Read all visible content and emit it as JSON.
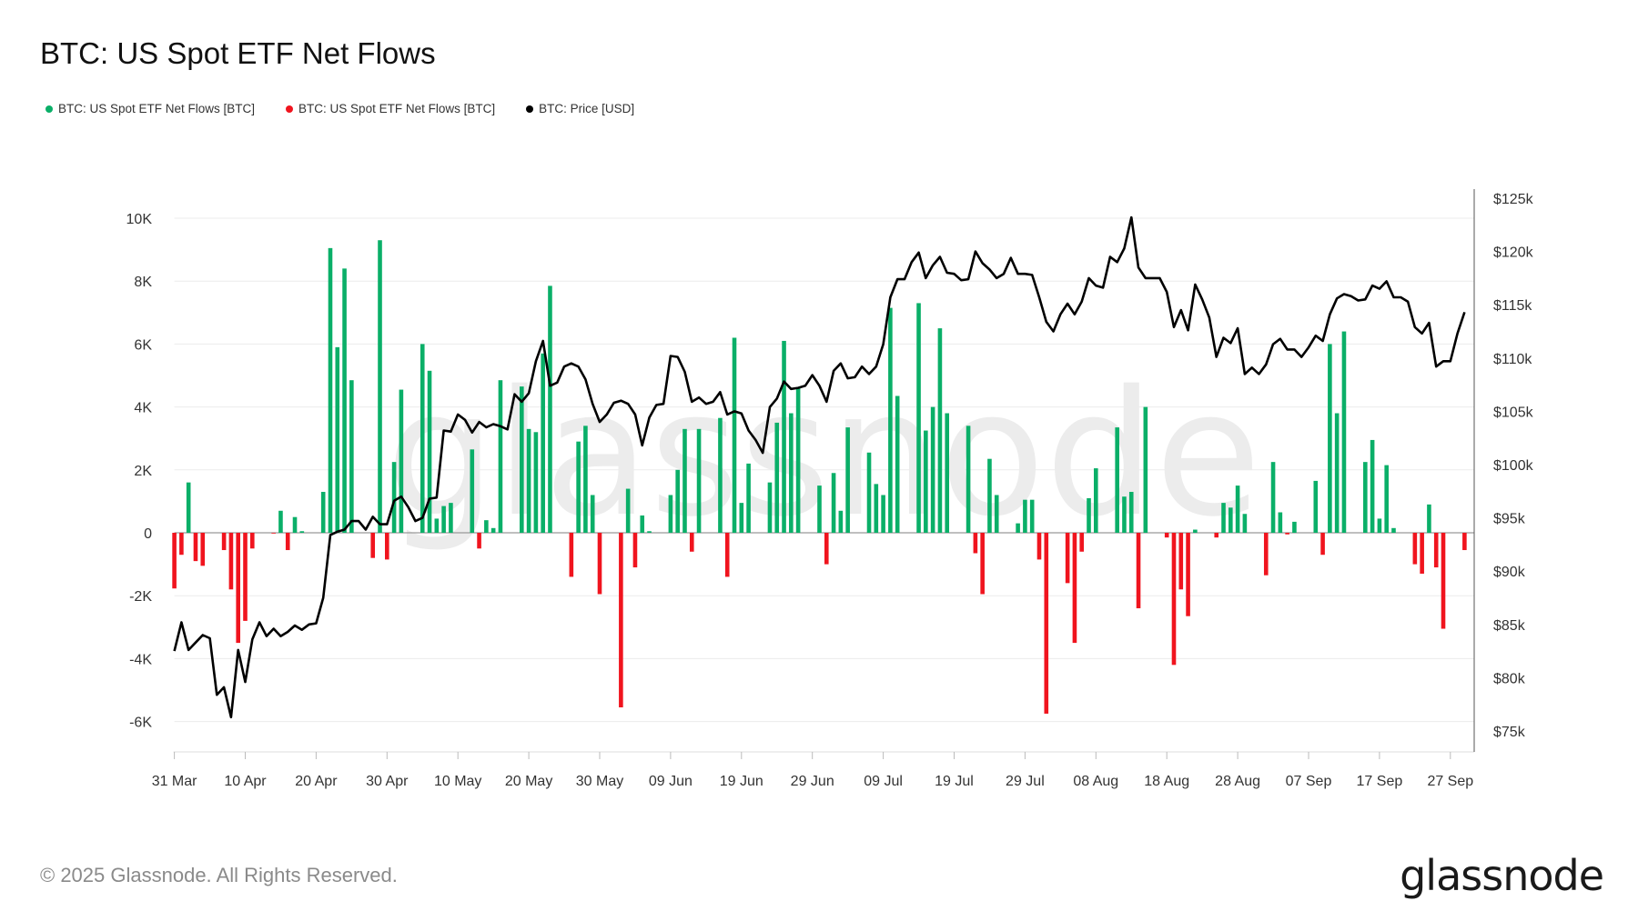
{
  "header": {
    "title": "BTC: US Spot ETF Net Flows"
  },
  "footer": {
    "copyright": "© 2025 Glassnode. All Rights Reserved.",
    "logo": "glassnode",
    "watermark": "glassnode"
  },
  "chart_data": {
    "type": "bar",
    "title": "BTC: US Spot ETF Net Flows",
    "legend": [
      {
        "name": "BTC: US Spot ETF Net Flows [BTC]",
        "color": "#0aaf68"
      },
      {
        "name": "BTC: US Spot ETF Net Flows [BTC]",
        "color": "#f0141e"
      },
      {
        "name": "BTC: Price [USD]",
        "color": "#000000"
      }
    ],
    "legend_position": "top-left",
    "grid": true,
    "x_start": "2025-03-31",
    "x_end": "2025-09-29",
    "x_ticks": [
      "31 Mar",
      "10 Apr",
      "20 Apr",
      "30 Apr",
      "10 May",
      "20 May",
      "30 May",
      "09 Jun",
      "19 Jun",
      "29 Jun",
      "09 Jul",
      "19 Jul",
      "29 Jul",
      "08 Aug",
      "18 Aug",
      "28 Aug",
      "07 Sep",
      "17 Sep",
      "27 Sep"
    ],
    "y_left": {
      "ticks": [
        "-6K",
        "-4K",
        "-2K",
        "0",
        "2K",
        "4K",
        "6K",
        "8K",
        "10K"
      ],
      "tick_values": [
        -6000,
        -4000,
        -2000,
        0,
        2000,
        4000,
        6000,
        8000,
        10000
      ],
      "range": [
        -7000,
        10500
      ]
    },
    "y_right": {
      "ticks": [
        "$75k",
        "$80k",
        "$85k",
        "$90k",
        "$95k",
        "$100k",
        "$105k",
        "$110k",
        "$115k",
        "$120k",
        "$125k"
      ],
      "tick_values": [
        75000,
        80000,
        85000,
        90000,
        95000,
        100000,
        105000,
        110000,
        115000,
        120000,
        125000
      ],
      "range": [
        74000,
        126000
      ]
    },
    "flows": [
      [
        "2025-03-31",
        -1770
      ],
      [
        "2025-04-01",
        -700
      ],
      [
        "2025-04-02",
        1600
      ],
      [
        "2025-04-03",
        -900
      ],
      [
        "2025-04-04",
        -1050
      ],
      [
        "2025-04-07",
        -550
      ],
      [
        "2025-04-08",
        -1800
      ],
      [
        "2025-04-09",
        -3500
      ],
      [
        "2025-04-10",
        -2800
      ],
      [
        "2025-04-11",
        -500
      ],
      [
        "2025-04-14",
        -20
      ],
      [
        "2025-04-15",
        700
      ],
      [
        "2025-04-16",
        -550
      ],
      [
        "2025-04-17",
        500
      ],
      [
        "2025-04-18",
        50
      ],
      [
        "2025-04-21",
        1300
      ],
      [
        "2025-04-22",
        9050
      ],
      [
        "2025-04-23",
        5900
      ],
      [
        "2025-04-24",
        8400
      ],
      [
        "2025-04-25",
        4850
      ],
      [
        "2025-04-28",
        -800
      ],
      [
        "2025-04-29",
        9300
      ],
      [
        "2025-04-30",
        -850
      ],
      [
        "2025-05-01",
        2250
      ],
      [
        "2025-05-02",
        4550
      ],
      [
        "2025-05-05",
        6000
      ],
      [
        "2025-05-06",
        5150
      ],
      [
        "2025-05-07",
        450
      ],
      [
        "2025-05-08",
        850
      ],
      [
        "2025-05-09",
        950
      ],
      [
        "2025-05-12",
        2650
      ],
      [
        "2025-05-13",
        -500
      ],
      [
        "2025-05-14",
        400
      ],
      [
        "2025-05-15",
        150
      ],
      [
        "2025-05-16",
        4850
      ],
      [
        "2025-05-19",
        4650
      ],
      [
        "2025-05-20",
        3300
      ],
      [
        "2025-05-21",
        3200
      ],
      [
        "2025-05-22",
        5700
      ],
      [
        "2025-05-23",
        7850
      ],
      [
        "2025-05-26",
        -1400
      ],
      [
        "2025-05-27",
        2900
      ],
      [
        "2025-05-28",
        3400
      ],
      [
        "2025-05-29",
        1200
      ],
      [
        "2025-05-30",
        -1950
      ],
      [
        "2025-06-02",
        -5550
      ],
      [
        "2025-06-03",
        1400
      ],
      [
        "2025-06-04",
        -1100
      ],
      [
        "2025-06-05",
        550
      ],
      [
        "2025-06-06",
        50
      ],
      [
        "2025-06-09",
        1200
      ],
      [
        "2025-06-10",
        2000
      ],
      [
        "2025-06-11",
        3300
      ],
      [
        "2025-06-12",
        -600
      ],
      [
        "2025-06-13",
        3300
      ],
      [
        "2025-06-16",
        3650
      ],
      [
        "2025-06-17",
        -1400
      ],
      [
        "2025-06-18",
        6200
      ],
      [
        "2025-06-19",
        950
      ],
      [
        "2025-06-20",
        2200
      ],
      [
        "2025-06-23",
        1600
      ],
      [
        "2025-06-24",
        3500
      ],
      [
        "2025-06-25",
        6100
      ],
      [
        "2025-06-26",
        3800
      ],
      [
        "2025-06-27",
        4600
      ],
      [
        "2025-06-30",
        1500
      ],
      [
        "2025-07-01",
        -1000
      ],
      [
        "2025-07-02",
        1900
      ],
      [
        "2025-07-03",
        700
      ],
      [
        "2025-07-04",
        3350
      ],
      [
        "2025-07-07",
        2550
      ],
      [
        "2025-07-08",
        1550
      ],
      [
        "2025-07-09",
        1200
      ],
      [
        "2025-07-10",
        7150
      ],
      [
        "2025-07-11",
        4350
      ],
      [
        "2025-07-14",
        7300
      ],
      [
        "2025-07-15",
        3250
      ],
      [
        "2025-07-16",
        4000
      ],
      [
        "2025-07-17",
        6500
      ],
      [
        "2025-07-18",
        3800
      ],
      [
        "2025-07-21",
        3400
      ],
      [
        "2025-07-22",
        -650
      ],
      [
        "2025-07-23",
        -1950
      ],
      [
        "2025-07-24",
        2350
      ],
      [
        "2025-07-25",
        1200
      ],
      [
        "2025-07-28",
        300
      ],
      [
        "2025-07-29",
        1050
      ],
      [
        "2025-07-30",
        1050
      ],
      [
        "2025-07-31",
        -850
      ],
      [
        "2025-08-01",
        -5750
      ],
      [
        "2025-08-04",
        -1600
      ],
      [
        "2025-08-05",
        -3500
      ],
      [
        "2025-08-06",
        -600
      ],
      [
        "2025-08-07",
        1100
      ],
      [
        "2025-08-08",
        2050
      ],
      [
        "2025-08-11",
        3350
      ],
      [
        "2025-08-12",
        1150
      ],
      [
        "2025-08-13",
        1300
      ],
      [
        "2025-08-14",
        -2400
      ],
      [
        "2025-08-15",
        4000
      ],
      [
        "2025-08-18",
        -150
      ],
      [
        "2025-08-19",
        -4200
      ],
      [
        "2025-08-20",
        -1800
      ],
      [
        "2025-08-21",
        -2650
      ],
      [
        "2025-08-22",
        100
      ],
      [
        "2025-08-25",
        -150
      ],
      [
        "2025-08-26",
        950
      ],
      [
        "2025-08-27",
        800
      ],
      [
        "2025-08-28",
        1500
      ],
      [
        "2025-08-29",
        600
      ],
      [
        "2025-09-01",
        -1350
      ],
      [
        "2025-09-02",
        2250
      ],
      [
        "2025-09-03",
        650
      ],
      [
        "2025-09-04",
        -50
      ],
      [
        "2025-09-05",
        350
      ],
      [
        "2025-09-08",
        1650
      ],
      [
        "2025-09-09",
        -700
      ],
      [
        "2025-09-10",
        6000
      ],
      [
        "2025-09-11",
        3800
      ],
      [
        "2025-09-12",
        6400
      ],
      [
        "2025-09-15",
        2250
      ],
      [
        "2025-09-16",
        2950
      ],
      [
        "2025-09-17",
        450
      ],
      [
        "2025-09-18",
        2150
      ],
      [
        "2025-09-19",
        150
      ],
      [
        "2025-09-22",
        -1000
      ],
      [
        "2025-09-23",
        -1300
      ],
      [
        "2025-09-24",
        900
      ],
      [
        "2025-09-25",
        -1100
      ],
      [
        "2025-09-26",
        -3050
      ],
      [
        "2025-09-29",
        -550
      ]
    ],
    "price_daily_from_2025-03-31": [
      82500,
      85200,
      82600,
      83300,
      84000,
      83700,
      78400,
      79100,
      76300,
      82600,
      79600,
      83600,
      85200,
      83900,
      84600,
      83900,
      84300,
      84900,
      84500,
      85000,
      85100,
      87500,
      93400,
      93700,
      93900,
      94700,
      94700,
      93900,
      95100,
      94400,
      94400,
      96600,
      97000,
      96000,
      94700,
      95000,
      96800,
      96900,
      103200,
      103100,
      104700,
      104200,
      103000,
      104000,
      103500,
      103800,
      103600,
      103300,
      106600,
      105900,
      106700,
      109700,
      111600,
      107400,
      107700,
      109200,
      109500,
      109200,
      108000,
      105700,
      104000,
      104700,
      105800,
      106000,
      105700,
      104700,
      101800,
      104400,
      105600,
      105700,
      110200,
      110100,
      108700,
      105900,
      106300,
      105700,
      105900,
      106800,
      104700,
      105000,
      104800,
      103200,
      102300,
      101100,
      105400,
      106200,
      107800,
      107100,
      107200,
      107400,
      108400,
      107400,
      105900,
      108800,
      109500,
      108100,
      108200,
      109200,
      108500,
      109200,
      111300,
      115700,
      117400,
      117400,
      119000,
      119900,
      117500,
      118700,
      119500,
      118000,
      117900,
      117300,
      117400,
      120000,
      118900,
      118300,
      117500,
      117900,
      119400,
      117900,
      117900,
      117800,
      115700,
      113400,
      112500,
      114100,
      115100,
      114100,
      115300,
      117500,
      116800,
      116600,
      119500,
      119000,
      120300,
      123200,
      118500,
      117500,
      117500,
      117500,
      116200,
      112900,
      114500,
      112600,
      116900,
      115500,
      113800,
      110100,
      111900,
      111400,
      112800,
      108500,
      109100,
      108500,
      109400,
      111300,
      111800,
      110800,
      110800,
      110100,
      111000,
      112100,
      111600,
      114100,
      115600,
      116000,
      115800,
      115400,
      115500,
      116800,
      116500,
      117200,
      115700,
      115700,
      115300,
      112900,
      112300,
      113300,
      109200,
      109700,
      109700,
      112300,
      114300
    ]
  }
}
